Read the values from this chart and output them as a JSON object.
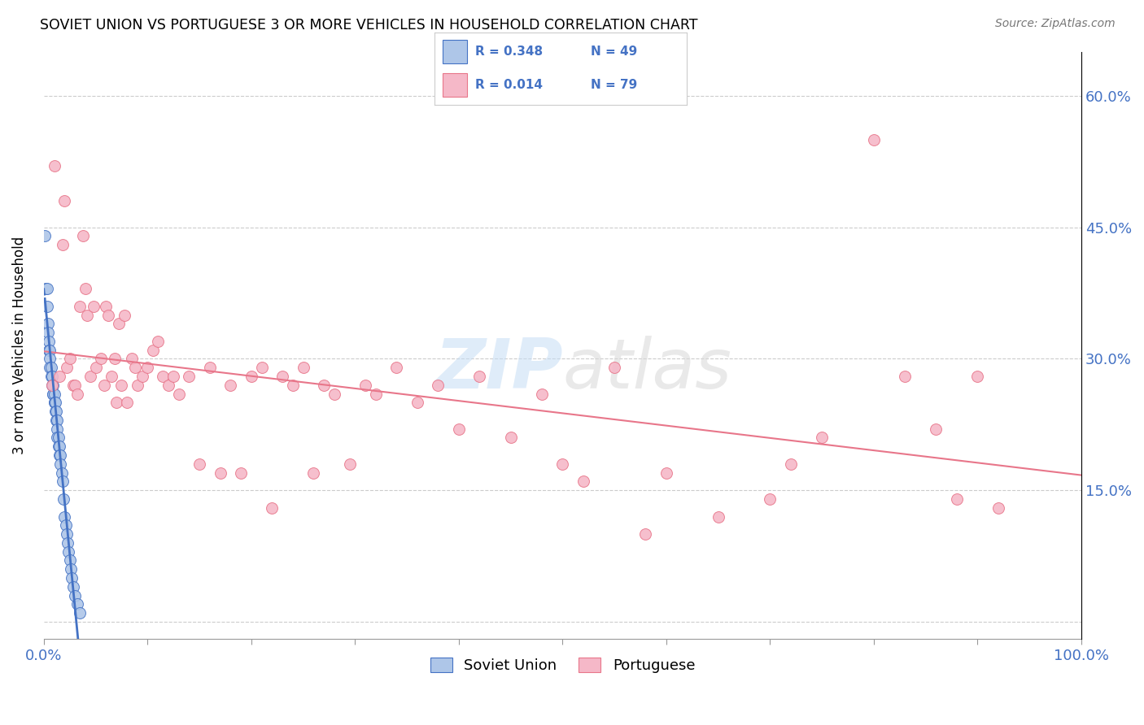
{
  "title": "SOVIET UNION VS PORTUGUESE 3 OR MORE VEHICLES IN HOUSEHOLD CORRELATION CHART",
  "source": "Source: ZipAtlas.com",
  "ylabel": "3 or more Vehicles in Household",
  "ytick_labels": [
    "",
    "15.0%",
    "30.0%",
    "45.0%",
    "60.0%"
  ],
  "ytick_values": [
    0.0,
    0.15,
    0.3,
    0.45,
    0.6
  ],
  "xlim": [
    0.0,
    1.0
  ],
  "ylim": [
    -0.02,
    0.65
  ],
  "watermark": "ZIPatlas",
  "soviet_R": 0.348,
  "soviet_N": 49,
  "portuguese_R": 0.014,
  "portuguese_N": 79,
  "soviet_color": "#aec6e8",
  "portuguese_color": "#f5b8c8",
  "soviet_line_color": "#4472c4",
  "portuguese_line_color": "#e8768a",
  "soviet_x": [
    0.001,
    0.002,
    0.003,
    0.003,
    0.004,
    0.004,
    0.005,
    0.005,
    0.006,
    0.006,
    0.006,
    0.007,
    0.007,
    0.008,
    0.008,
    0.009,
    0.009,
    0.009,
    0.01,
    0.01,
    0.01,
    0.011,
    0.011,
    0.012,
    0.012,
    0.013,
    0.013,
    0.013,
    0.014,
    0.014,
    0.015,
    0.015,
    0.016,
    0.016,
    0.017,
    0.018,
    0.019,
    0.02,
    0.021,
    0.022,
    0.023,
    0.024,
    0.025,
    0.026,
    0.027,
    0.028,
    0.03,
    0.032,
    0.035
  ],
  "soviet_y": [
    0.44,
    0.38,
    0.38,
    0.36,
    0.34,
    0.33,
    0.32,
    0.31,
    0.31,
    0.3,
    0.29,
    0.29,
    0.28,
    0.28,
    0.27,
    0.27,
    0.26,
    0.26,
    0.26,
    0.25,
    0.25,
    0.25,
    0.24,
    0.24,
    0.23,
    0.23,
    0.22,
    0.21,
    0.21,
    0.2,
    0.2,
    0.19,
    0.19,
    0.18,
    0.17,
    0.16,
    0.14,
    0.12,
    0.11,
    0.1,
    0.09,
    0.08,
    0.07,
    0.06,
    0.05,
    0.04,
    0.03,
    0.02,
    0.01
  ],
  "portuguese_x": [
    0.008,
    0.01,
    0.015,
    0.018,
    0.02,
    0.022,
    0.025,
    0.028,
    0.03,
    0.032,
    0.035,
    0.038,
    0.04,
    0.042,
    0.045,
    0.048,
    0.05,
    0.055,
    0.058,
    0.06,
    0.062,
    0.065,
    0.068,
    0.07,
    0.072,
    0.075,
    0.078,
    0.08,
    0.085,
    0.088,
    0.09,
    0.095,
    0.1,
    0.105,
    0.11,
    0.115,
    0.12,
    0.125,
    0.13,
    0.14,
    0.15,
    0.16,
    0.17,
    0.18,
    0.19,
    0.2,
    0.21,
    0.22,
    0.23,
    0.24,
    0.25,
    0.26,
    0.27,
    0.28,
    0.295,
    0.31,
    0.32,
    0.34,
    0.36,
    0.38,
    0.4,
    0.42,
    0.45,
    0.48,
    0.5,
    0.52,
    0.55,
    0.58,
    0.6,
    0.65,
    0.7,
    0.72,
    0.75,
    0.8,
    0.83,
    0.86,
    0.88,
    0.9,
    0.92
  ],
  "portuguese_y": [
    0.27,
    0.52,
    0.28,
    0.43,
    0.48,
    0.29,
    0.3,
    0.27,
    0.27,
    0.26,
    0.36,
    0.44,
    0.38,
    0.35,
    0.28,
    0.36,
    0.29,
    0.3,
    0.27,
    0.36,
    0.35,
    0.28,
    0.3,
    0.25,
    0.34,
    0.27,
    0.35,
    0.25,
    0.3,
    0.29,
    0.27,
    0.28,
    0.29,
    0.31,
    0.32,
    0.28,
    0.27,
    0.28,
    0.26,
    0.28,
    0.18,
    0.29,
    0.17,
    0.27,
    0.17,
    0.28,
    0.29,
    0.13,
    0.28,
    0.27,
    0.29,
    0.17,
    0.27,
    0.26,
    0.18,
    0.27,
    0.26,
    0.29,
    0.25,
    0.27,
    0.22,
    0.28,
    0.21,
    0.26,
    0.18,
    0.16,
    0.29,
    0.1,
    0.17,
    0.12,
    0.14,
    0.18,
    0.21,
    0.55,
    0.28,
    0.22,
    0.14,
    0.28,
    0.13
  ]
}
